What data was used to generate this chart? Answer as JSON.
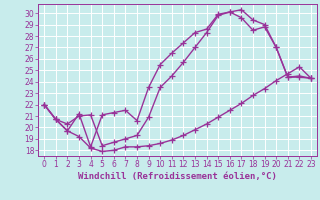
{
  "xlabel": "Windchill (Refroidissement éolien,°C)",
  "bg_color": "#c8ecec",
  "grid_color": "#ffffff",
  "line_color": "#993399",
  "xlim": [
    -0.5,
    23.5
  ],
  "ylim": [
    17.5,
    30.8
  ],
  "xticks": [
    0,
    1,
    2,
    3,
    4,
    5,
    6,
    7,
    8,
    9,
    10,
    11,
    12,
    13,
    14,
    15,
    16,
    17,
    18,
    19,
    20,
    21,
    22,
    23
  ],
  "yticks": [
    18,
    19,
    20,
    21,
    22,
    23,
    24,
    25,
    26,
    27,
    28,
    29,
    30
  ],
  "curve1_x": [
    0,
    1,
    2,
    3,
    4,
    5,
    6,
    7,
    8,
    9,
    10,
    11,
    12,
    13,
    14,
    15,
    16,
    17,
    18,
    19,
    20,
    21,
    22,
    23
  ],
  "curve1_y": [
    22.0,
    20.7,
    19.7,
    19.2,
    18.2,
    17.9,
    18.0,
    18.3,
    18.3,
    18.4,
    18.6,
    18.9,
    19.3,
    19.8,
    20.3,
    20.9,
    21.5,
    22.1,
    22.8,
    23.4,
    24.1,
    24.7,
    25.3,
    24.3
  ],
  "curve2_x": [
    0,
    1,
    2,
    3,
    4,
    5,
    6,
    7,
    8,
    9,
    10,
    11,
    12,
    13,
    14,
    15,
    16,
    17,
    18,
    19,
    20,
    21,
    22,
    23
  ],
  "curve2_y": [
    22.0,
    20.7,
    19.7,
    21.2,
    18.3,
    21.1,
    21.3,
    21.5,
    20.6,
    23.5,
    25.5,
    26.5,
    27.4,
    28.3,
    28.6,
    29.9,
    30.1,
    29.6,
    28.5,
    28.8,
    27.0,
    24.4,
    24.5,
    24.3
  ],
  "curve3_x": [
    0,
    1,
    2,
    3,
    4,
    5,
    6,
    7,
    8,
    9,
    10,
    11,
    12,
    13,
    14,
    15,
    16,
    17,
    18,
    19,
    20,
    21,
    22,
    23
  ],
  "curve3_y": [
    22.0,
    20.7,
    20.3,
    21.0,
    21.1,
    18.4,
    18.7,
    19.0,
    19.3,
    20.9,
    23.5,
    24.5,
    25.7,
    27.0,
    28.3,
    29.8,
    30.1,
    30.3,
    29.4,
    29.0,
    27.0,
    24.4,
    24.4,
    24.3
  ],
  "marker": "+",
  "markersize": 4,
  "linewidth": 1.0,
  "xlabel_fontsize": 6.5,
  "tick_fontsize": 5.5,
  "tick_color": "#993399",
  "axis_color": "#993399"
}
